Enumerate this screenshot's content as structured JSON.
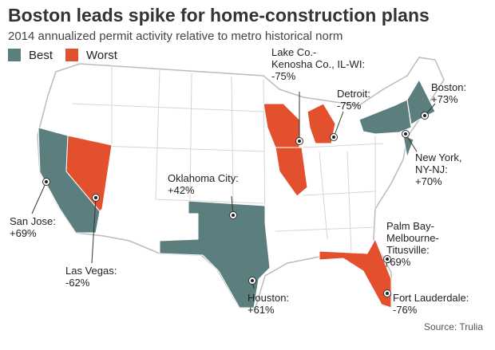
{
  "header": {
    "title": "Boston leads spike for home-construction plans",
    "subtitle": "2014 annualized permit activity relative to metro historical norm"
  },
  "legend": [
    {
      "label": "Best",
      "color": "#5b7f7e"
    },
    {
      "label": "Worst",
      "color": "#e2502d"
    }
  ],
  "callouts": [
    {
      "lines": [
        "Lake Co.-",
        "Kenosha Co., IL-WI:",
        "-75%"
      ]
    },
    {
      "lines": [
        "Detroit:",
        "-75%"
      ]
    },
    {
      "lines": [
        "Boston:",
        "+73%"
      ]
    },
    {
      "lines": [
        "New York,",
        "NY-NJ:",
        "+70%"
      ]
    },
    {
      "lines": [
        "Oklahoma City:",
        "+42%"
      ]
    },
    {
      "lines": [
        "San Jose:",
        "+69%"
      ]
    },
    {
      "lines": [
        "Las Vegas:",
        "-62%"
      ]
    },
    {
      "lines": [
        "Houston:",
        "+61%"
      ]
    },
    {
      "lines": [
        "Palm Bay-",
        "Melbourne-",
        "Titusville:",
        "-69%"
      ]
    },
    {
      "lines": [
        "Fort Lauderdale:",
        "-76%"
      ]
    }
  ],
  "footer": {
    "source": "Source: Trulia"
  }
}
